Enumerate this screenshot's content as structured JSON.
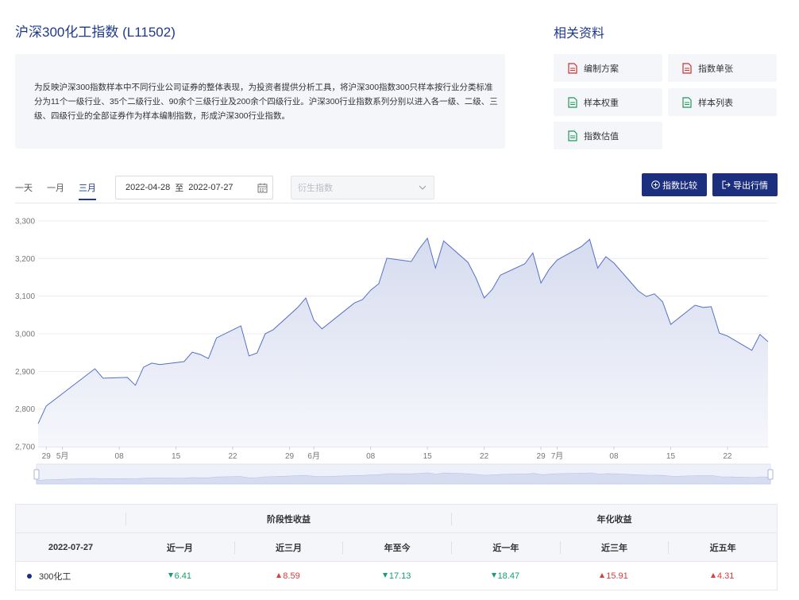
{
  "header": {
    "title": "沪深300化工指数 (L11502)",
    "description": "为反映沪深300指数样本中不同行业公司证券的整体表现，为投资者提供分析工具，将沪深300指数300只样本按行业分类标准分为11个一级行业、35个二级行业、90余个三级行业及200余个四级行业。沪深300行业指数系列分别以进入各一级、二级、三级、四级行业的全部证券作为样本编制指数，形成沪深300行业指数。"
  },
  "resources": {
    "title": "相关资料",
    "items": [
      {
        "label": "编制方案",
        "icon_color": "#d0312d"
      },
      {
        "label": "指数单张",
        "icon_color": "#d0312d"
      },
      {
        "label": "样本权重",
        "icon_color": "#1f9a5c"
      },
      {
        "label": "样本列表",
        "icon_color": "#1f9a5c"
      },
      {
        "label": "指数估值",
        "icon_color": "#1f9a5c"
      }
    ]
  },
  "controls": {
    "ranges": [
      "一天",
      "一月",
      "三月"
    ],
    "active_range": 2,
    "date_from": "2022-04-28",
    "date_sep": "至",
    "date_to": "2022-07-27",
    "select_placeholder": "衍生指数",
    "buttons": [
      "指数比较",
      "导出行情"
    ]
  },
  "chart_data": {
    "type": "line",
    "color": "#5470c6",
    "grid": true,
    "x": [
      "2022-04-28",
      "2022-04-29",
      "2022-05-05",
      "2022-05-06",
      "2022-05-09",
      "2022-05-10",
      "2022-05-11",
      "2022-05-12",
      "2022-05-13",
      "2022-05-16",
      "2022-05-17",
      "2022-05-18",
      "2022-05-19",
      "2022-05-20",
      "2022-05-23",
      "2022-05-24",
      "2022-05-25",
      "2022-05-26",
      "2022-05-27",
      "2022-05-30",
      "2022-05-31",
      "2022-06-01",
      "2022-06-02",
      "2022-06-06",
      "2022-06-07",
      "2022-06-08",
      "2022-06-09",
      "2022-06-10",
      "2022-06-13",
      "2022-06-14",
      "2022-06-15",
      "2022-06-16",
      "2022-06-17",
      "2022-06-20",
      "2022-06-21",
      "2022-06-22",
      "2022-06-23",
      "2022-06-24",
      "2022-06-27",
      "2022-06-28",
      "2022-06-29",
      "2022-06-30",
      "2022-07-01",
      "2022-07-04",
      "2022-07-05",
      "2022-07-06",
      "2022-07-07",
      "2022-07-08",
      "2022-07-11",
      "2022-07-12",
      "2022-07-13",
      "2022-07-14",
      "2022-07-15",
      "2022-07-18",
      "2022-07-19",
      "2022-07-20",
      "2022-07-21",
      "2022-07-22",
      "2022-07-25",
      "2022-07-26",
      "2022-07-27"
    ],
    "values": [
      2761,
      2808,
      2907,
      2882,
      2884,
      2863,
      2911,
      2922,
      2918,
      2926,
      2951,
      2945,
      2934,
      2989,
      3021,
      2941,
      2949,
      3000,
      3011,
      3070,
      3095,
      3036,
      3013,
      3082,
      3091,
      3116,
      3133,
      3201,
      3192,
      3226,
      3254,
      3175,
      3247,
      3190,
      3148,
      3095,
      3118,
      3156,
      3186,
      3215,
      3135,
      3171,
      3196,
      3232,
      3251,
      3175,
      3205,
      3188,
      3114,
      3099,
      3106,
      3085,
      3025,
      3076,
      3070,
      3072,
      3002,
      2994,
      2956,
      2998,
      2979
    ],
    "xlim": [
      "2022-04-28",
      "2022-07-27"
    ],
    "xticks": [
      {
        "value": "2022-04-29",
        "label": "29"
      },
      {
        "value": "2022-05-01",
        "label": "5月"
      },
      {
        "value": "2022-05-08",
        "label": "08"
      },
      {
        "value": "2022-05-15",
        "label": "15"
      },
      {
        "value": "2022-05-22",
        "label": "22"
      },
      {
        "value": "2022-05-29",
        "label": "29"
      },
      {
        "value": "2022-06-01",
        "label": "6月"
      },
      {
        "value": "2022-06-08",
        "label": "08"
      },
      {
        "value": "2022-06-15",
        "label": "15"
      },
      {
        "value": "2022-06-22",
        "label": "22"
      },
      {
        "value": "2022-06-29",
        "label": "29"
      },
      {
        "value": "2022-07-01",
        "label": "7月"
      },
      {
        "value": "2022-07-08",
        "label": "08"
      },
      {
        "value": "2022-07-15",
        "label": "15"
      },
      {
        "value": "2022-07-22",
        "label": "22"
      }
    ],
    "ylim": [
      2700,
      3300
    ],
    "yticks": [
      {
        "value": 2700,
        "label": "2,700"
      },
      {
        "value": 2800,
        "label": "2,800"
      },
      {
        "value": 2900,
        "label": "2,900"
      },
      {
        "value": 3000,
        "label": "3,000"
      },
      {
        "value": 3100,
        "label": "3,100"
      },
      {
        "value": 3200,
        "label": "3,200"
      },
      {
        "value": 3300,
        "label": "3,300"
      }
    ]
  },
  "table": {
    "groups": [
      "阶段性收益",
      "年化收益"
    ],
    "date": "2022-07-27",
    "columns": [
      "近一月",
      "近三月",
      "年至今",
      "近一年",
      "近三年",
      "近五年"
    ],
    "rows": [
      {
        "name": "300化工",
        "values": [
          6.41,
          8.59,
          17.13,
          18.47,
          15.91,
          4.31
        ],
        "trends": [
          "down",
          "up",
          "down",
          "down",
          "up",
          "up"
        ]
      }
    ]
  }
}
